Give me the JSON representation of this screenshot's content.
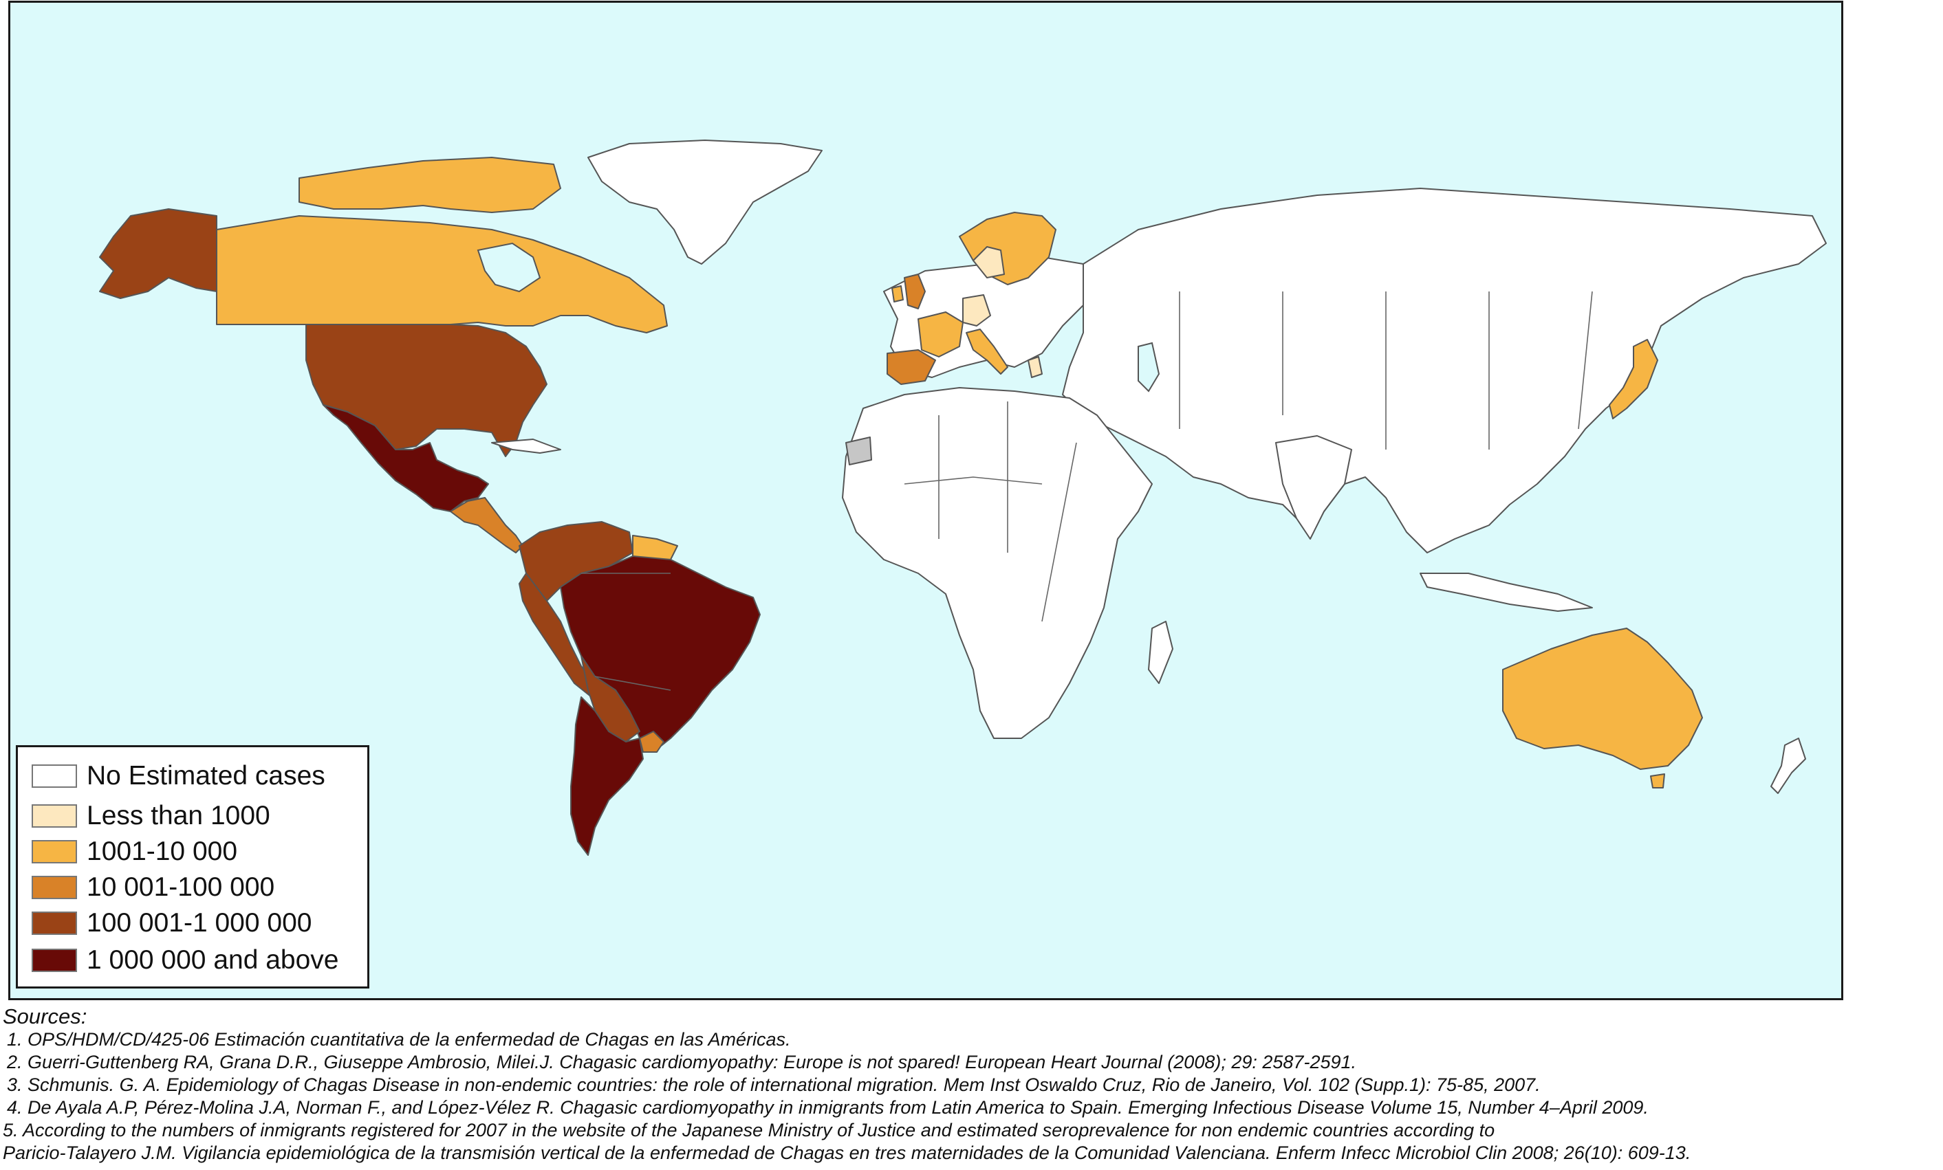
{
  "colors": {
    "ocean": "#dcfafb",
    "no_estimate": "#ffffff",
    "lt_1000": "#fde8bf",
    "c1001_10000": "#f6b544",
    "c10001_100000": "#d98228",
    "c100001_1000000": "#9a4316",
    "c1000000_plus": "#680a07",
    "no_data_grey": "#c6c6c6"
  },
  "legend": {
    "items": [
      {
        "label": "No Estimated cases",
        "color": "#ffffff"
      },
      {
        "label": "Less than 1000",
        "color": "#fde8bf"
      },
      {
        "label": "1001-10 000",
        "color": "#f6b544"
      },
      {
        "label": "10 001-100 000",
        "color": "#d98228"
      },
      {
        "label": "100 001-1 000 000",
        "color": "#9a4316"
      },
      {
        "label": "1 000 000 and above",
        "color": "#680a07"
      }
    ]
  },
  "sources": {
    "title": "Sources:",
    "lines": [
      "1. OPS/HDM/CD/425-06 Estimación cuantitativa de la enfermedad de Chagas en las Américas.",
      "2. Guerri-Guttenberg RA, Grana D.R., Giuseppe Ambrosio, Milei.J. Chagasic cardiomyopathy: Europe is not spared! European Heart Journal (2008); 29: 2587-2591.",
      "3. Schmunis. G. A. Epidemiology of Chagas Disease in non-endemic countries: the role of international migration. Mem Inst Oswaldo Cruz, Rio de Janeiro, Vol. 102 (Supp.1): 75-85, 2007.",
      "4. De Ayala A.P, Pérez-Molina J.A, Norman F., and López-Vélez R. Chagasic cardiomyopathy in inmigrants from Latin America to Spain. Emerging Infectious Disease Volume 15, Number 4–April 2009.",
      "5. According to the numbers of inmigrants registered for 2007 in the website of the Japanese Ministry of Justice and estimated seroprevalence for non endemic countries according to",
      "Paricio-Talayero J.M. Vigilancia epidemiológica de la transmisión vertical de la enfermedad de Chagas en tres maternidades de la Comunidad Valenciana. Enferm Infecc Microbiol Clin 2008; 26(10): 609-13."
    ]
  }
}
